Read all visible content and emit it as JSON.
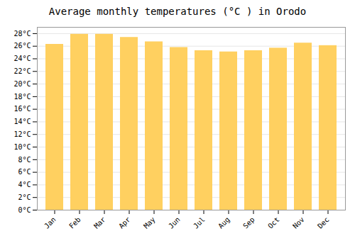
{
  "chart_data": {
    "type": "bar",
    "title": "Average monthly temperatures (°C ) in Orodo",
    "categories": [
      "Jan",
      "Feb",
      "Mar",
      "Apr",
      "May",
      "Jun",
      "Jul",
      "Aug",
      "Sep",
      "Oct",
      "Nov",
      "Dec"
    ],
    "values": [
      26.3,
      27.9,
      27.9,
      27.4,
      26.7,
      25.8,
      25.3,
      25.1,
      25.3,
      25.7,
      26.5,
      26.1
    ],
    "color": "#FFD060",
    "ylim": [
      0,
      29
    ],
    "yticks": [
      {
        "value": 0,
        "label": "0°C"
      },
      {
        "value": 2,
        "label": "2°C"
      },
      {
        "value": 4,
        "label": "4°C"
      },
      {
        "value": 6,
        "label": "6°C"
      },
      {
        "value": 8,
        "label": "8°C"
      },
      {
        "value": 10,
        "label": "10°C"
      },
      {
        "value": 12,
        "label": "12°C"
      },
      {
        "value": 14,
        "label": "14°C"
      },
      {
        "value": 16,
        "label": "16°C"
      },
      {
        "value": 18,
        "label": "18°C"
      },
      {
        "value": 20,
        "label": "20°C"
      },
      {
        "value": 22,
        "label": "22°C"
      },
      {
        "value": 24,
        "label": "24°C"
      },
      {
        "value": 26,
        "label": "26°C"
      },
      {
        "value": 28,
        "label": "28°C"
      }
    ],
    "grid": true
  }
}
